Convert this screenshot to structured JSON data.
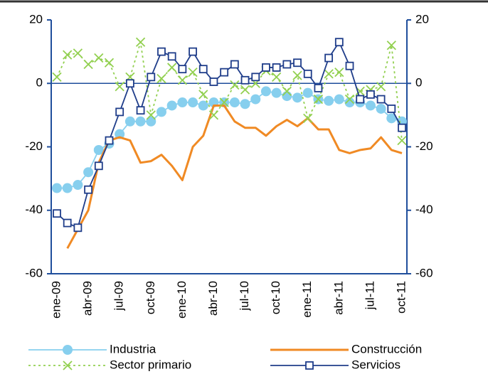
{
  "chart_data": {
    "type": "line",
    "categories": [
      "ene-09",
      null,
      null,
      "abr-09",
      null,
      null,
      "jul-09",
      null,
      null,
      "oct-09",
      null,
      null,
      "ene-10",
      null,
      null,
      "abr-10",
      null,
      null,
      "jul-10",
      null,
      null,
      "oct-10",
      null,
      null,
      "ene-11",
      null,
      null,
      "abr-11",
      null,
      null,
      "jul-11",
      null,
      null,
      "oct-11"
    ],
    "series": [
      {
        "name": "Industria",
        "color": "#87cfee",
        "marker": "circle",
        "dash": "solid",
        "values": [
          -33,
          -33,
          -32,
          -28,
          -21,
          -19,
          -16,
          -12,
          -12,
          -12,
          -9,
          -7,
          -6,
          -6,
          -7,
          -6,
          -6,
          -6,
          -6.5,
          -5,
          -2.5,
          -3,
          -4,
          -4.5,
          -3,
          -5,
          -5.5,
          -5,
          -6,
          -6,
          -7,
          -8,
          -11,
          -12
        ]
      },
      {
        "name": "Construcción",
        "color": "#f08a24",
        "marker": "none",
        "dash": "solid",
        "values": [
          null,
          -52,
          -46,
          -40,
          -25,
          -18,
          -17,
          -18,
          -25,
          -24.5,
          -22.5,
          -26,
          -30.5,
          -20,
          -16.5,
          -7,
          -7,
          -12,
          -14,
          -14,
          -16.5,
          -13.5,
          -11.5,
          -13.5,
          -11,
          -14.5,
          -14.5,
          -21,
          -22,
          -21,
          -20.5,
          -17,
          -21,
          -22
        ]
      },
      {
        "name": "Sector primario",
        "color": "#92d050",
        "marker": "x",
        "dash": "dotted",
        "values": [
          2,
          9,
          9.5,
          6,
          8,
          6.5,
          -1,
          2,
          13,
          -10,
          1.5,
          5,
          1,
          3.5,
          -3.5,
          -10,
          -6,
          -0.5,
          -2,
          0,
          4,
          2,
          -2.5,
          2.5,
          -11,
          -5,
          3,
          3.5,
          -5,
          -2.5,
          -2,
          -1,
          12,
          -18
        ]
      },
      {
        "name": "Servicios",
        "color": "#1f3d8a",
        "marker": "square",
        "dash": "solid",
        "values": [
          -41,
          -44,
          -45.5,
          -33.5,
          -26,
          -18,
          -9,
          0,
          -8.5,
          2,
          10,
          8.5,
          4.5,
          10,
          4.5,
          0.5,
          3.5,
          6,
          1,
          2,
          5,
          5,
          6,
          6.5,
          3,
          -1.5,
          8,
          13,
          5.5,
          -5,
          -3.5,
          -5,
          -8,
          -14
        ]
      }
    ],
    "ylim": [
      -60,
      20
    ],
    "yticks": [
      20,
      0,
      -20,
      -40,
      -60
    ],
    "y2lim": [
      -60,
      20
    ],
    "y2ticks": [
      20,
      0,
      -20,
      -40,
      -60
    ],
    "axis_color": "#1f4e9c",
    "legend": "bottom"
  }
}
